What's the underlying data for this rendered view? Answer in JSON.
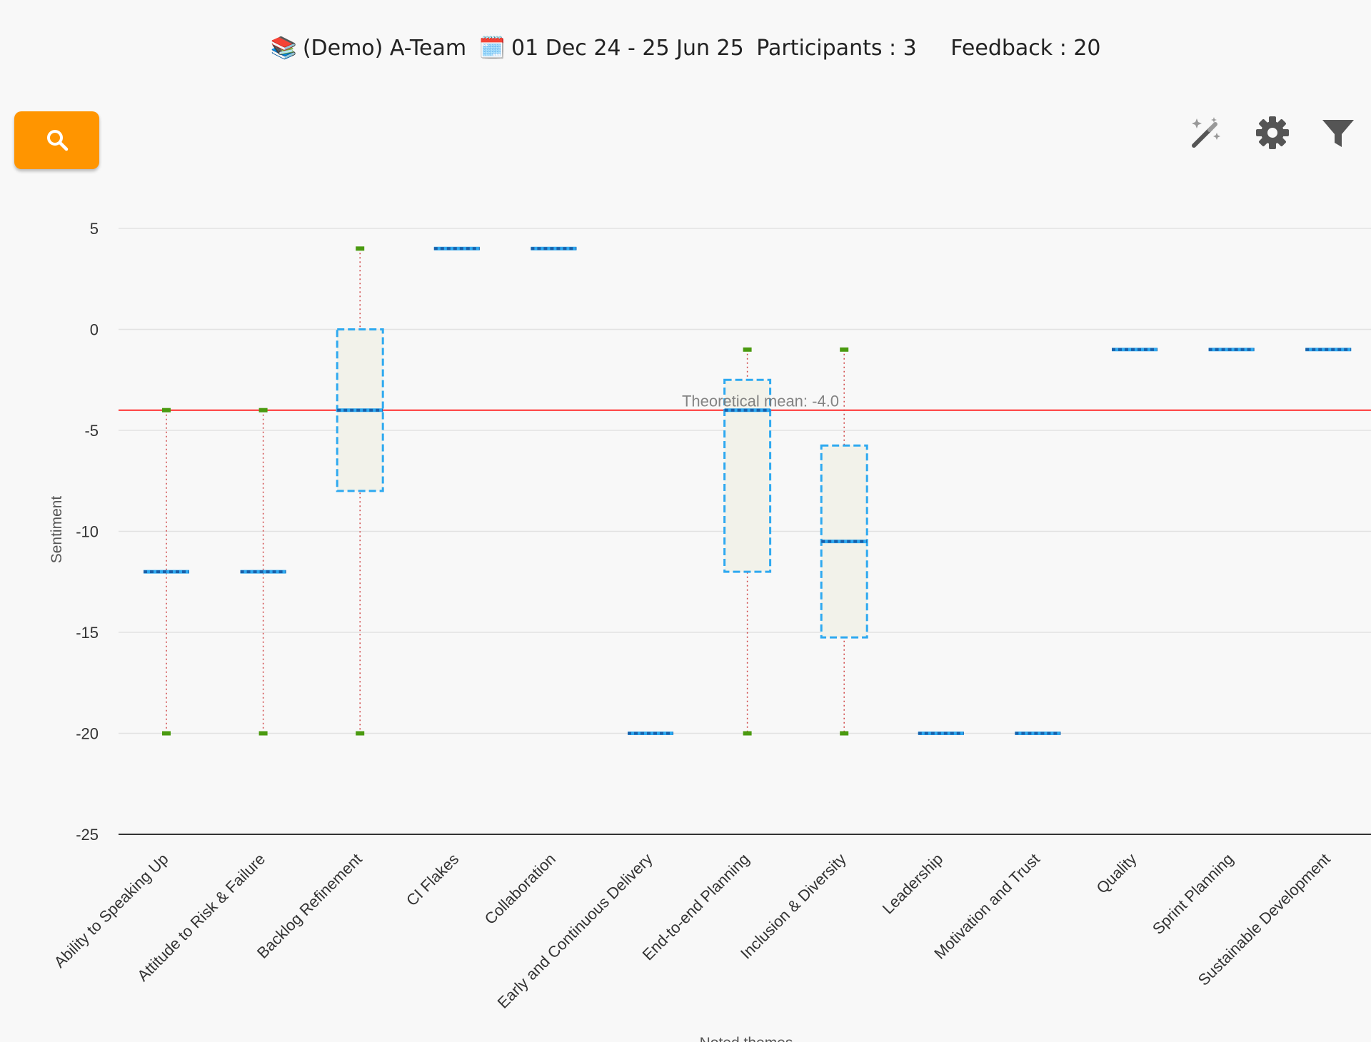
{
  "header": {
    "team_icon": "📚",
    "team_name": "(Demo) A-Team",
    "calendar_icon": "🗓️",
    "date_range": "01 Dec 24 - 25 Jun 25",
    "participants": "Participants : 3",
    "feedback": "Feedback : 20"
  },
  "toolbar": {
    "search_icon": "search-icon",
    "magic_icon": "magic-wand-icon",
    "settings_icon": "gear-icon",
    "filter_icon": "filter-icon"
  },
  "colors": {
    "search_button": "#ff9500",
    "box_stroke": "#2ea9f0",
    "box_fill": "#f2f2ea",
    "median": "#1a5fa8",
    "whisker": "#d04545",
    "whisker_end": "#4a9a10",
    "mean_line": "#ff2a2a"
  },
  "chart_data": {
    "type": "box",
    "title": "",
    "xlabel": "Noted themes",
    "ylabel": "Sentiment",
    "ylim": [
      -25,
      5
    ],
    "y_ticks": [
      "5",
      "0",
      "-5",
      "-10",
      "-15",
      "-20",
      "-25"
    ],
    "grid": true,
    "reference_line": {
      "value": -4.0,
      "label": "Theoretical mean: -4.0"
    },
    "categories": [
      "Ability to Speaking Up",
      "Attitude to Risk & Failure",
      "Backlog Refinement",
      "CI Flakes",
      "Collaboration",
      "Early and Continuous Delivery",
      "End-to-end Planning",
      "Inclusion & Diversity",
      "Leadership",
      "Motivation and Trust",
      "Quality",
      "Sprint Planning",
      "Sustainable Development"
    ],
    "boxes": [
      {
        "min": -20,
        "q1": -12,
        "median": -12,
        "q3": -12,
        "max": -4
      },
      {
        "min": -20,
        "q1": -12,
        "median": -12,
        "q3": -12,
        "max": -4
      },
      {
        "min": -20,
        "q1": -8,
        "median": -4,
        "q3": 0,
        "max": 4
      },
      {
        "min": 4,
        "q1": 4,
        "median": 4,
        "q3": 4,
        "max": 4
      },
      {
        "min": 4,
        "q1": 4,
        "median": 4,
        "q3": 4,
        "max": 4
      },
      {
        "min": -20,
        "q1": -20,
        "median": -20,
        "q3": -20,
        "max": -20
      },
      {
        "min": -20,
        "q1": -12,
        "median": -4,
        "q3": -2.5,
        "max": -1
      },
      {
        "min": -20,
        "q1": -15.25,
        "median": -10.5,
        "q3": -5.75,
        "max": -1
      },
      {
        "min": -20,
        "q1": -20,
        "median": -20,
        "q3": -20,
        "max": -20
      },
      {
        "min": -20,
        "q1": -20,
        "median": -20,
        "q3": -20,
        "max": -20
      },
      {
        "min": -1,
        "q1": -1,
        "median": -1,
        "q3": -1,
        "max": -1
      },
      {
        "min": -1,
        "q1": -1,
        "median": -1,
        "q3": -1,
        "max": -1
      },
      {
        "min": -1,
        "q1": -1,
        "median": -1,
        "q3": -1,
        "max": -1
      }
    ]
  }
}
